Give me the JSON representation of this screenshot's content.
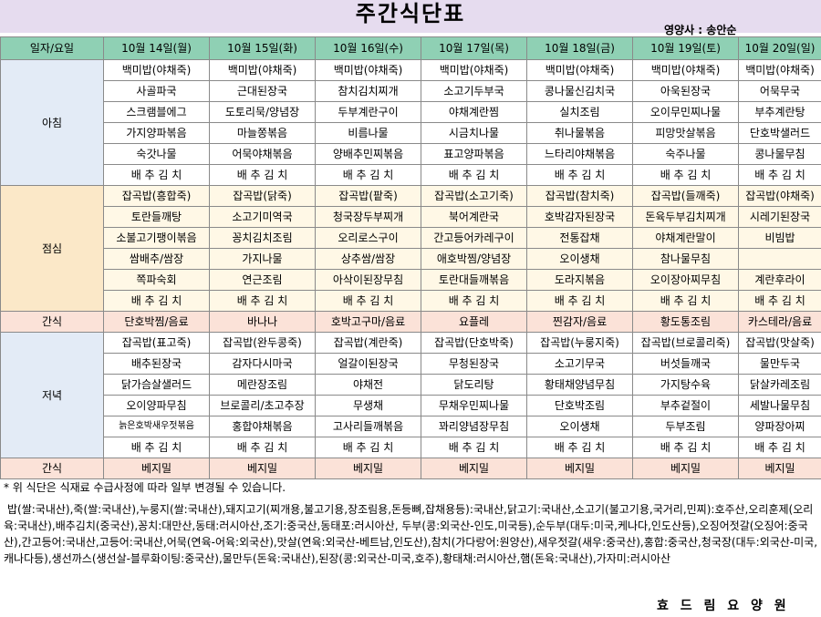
{
  "title": "주간식단표",
  "nutritionist": "영양사 : 송안순",
  "header": {
    "label": "일자/요일",
    "days": [
      "10월 14일(월)",
      "10월 15일(화)",
      "10월 16일(수)",
      "10월 17일(목)",
      "10월 18일(금)",
      "10월 19일(토)",
      "10월 20일(일)"
    ]
  },
  "breakfast": {
    "label": "아침",
    "rows": [
      [
        "백미밥(야채죽)",
        "백미밥(야채죽)",
        "백미밥(야채죽)",
        "백미밥(야채죽)",
        "백미밥(야채죽)",
        "백미밥(야채죽)",
        "백미밥(야채죽)"
      ],
      [
        "사골파국",
        "근대된장국",
        "참치김치찌개",
        "소고기두부국",
        "콩나물신김치국",
        "아욱된장국",
        "어묵무국"
      ],
      [
        "스크램블에그",
        "도토리묵/양념장",
        "두부계란구이",
        "야채계란찜",
        "실치조림",
        "오이무민찌나물",
        "부추계란탕"
      ],
      [
        "가지양파볶음",
        "마늘쫑볶음",
        "비름나물",
        "시금치나물",
        "취나물볶음",
        "피망맛살볶음",
        "단호박샐러드"
      ],
      [
        "숙갓나물",
        "어묵야채볶음",
        "양배추민찌볶음",
        "표고양파볶음",
        "느타리야채볶음",
        "숙주나물",
        "콩나물무침"
      ],
      [
        "배 추 김 치",
        "배 추 김 치",
        "배 추 김 치",
        "배 추 김 치",
        "배 추 김 치",
        "배 추 김 치",
        "배 추 김 치"
      ]
    ]
  },
  "lunch": {
    "label": "점심",
    "rows": [
      [
        "잡곡밥(흥합죽)",
        "잡곡밥(닭죽)",
        "잡곡밥(팥죽)",
        "잡곡밥(소고기죽)",
        "잡곡밥(참치죽)",
        "잡곡밥(들깨죽)",
        "잡곡밥(야채죽)"
      ],
      [
        "토란들깨탕",
        "소고기미역국",
        "청국장두부찌개",
        "북어계란국",
        "호박감자된장국",
        "돈육두부김치찌개",
        "시레기된장국"
      ],
      [
        "소불고기팽이볶음",
        "꽁치김치조림",
        "오리로스구이",
        "간고등어카레구이",
        "전통잡채",
        "야채계란말이",
        "비빔밥"
      ],
      [
        "쌈배추/쌈장",
        "가지나물",
        "상추쌈/쌈장",
        "애호박찜/양념장",
        "오이생채",
        "참나물무침",
        ""
      ],
      [
        "쪽파숙회",
        "연근조림",
        "아삭이된장무침",
        "토란대들깨볶음",
        "도라지볶음",
        "오이장아찌무침",
        "계란후라이"
      ],
      [
        "배 추 김 치",
        "배 추 김 치",
        "배 추 김 치",
        "배 추 김 치",
        "배 추 김 치",
        "배 추 김 치",
        "배 추 김 치"
      ]
    ]
  },
  "snack1": {
    "label": "간식",
    "items": [
      "단호박찜/음료",
      "바나나",
      "호박고구마/음료",
      "요플레",
      "찐감자/음료",
      "황도통조림",
      "카스테라/음료"
    ]
  },
  "dinner": {
    "label": "저녁",
    "rows": [
      [
        "잡곡밥(표고죽)",
        "잡곡밥(완두콩죽)",
        "잡곡밥(계란죽)",
        "잡곡밥(단호박죽)",
        "잡곡밥(누룽지죽)",
        "잡곡밥(브로콜리죽)",
        "잡곡밥(맛살죽)"
      ],
      [
        "배추된장국",
        "감자다시마국",
        "얼갈이된장국",
        "무청된장국",
        "소고기무국",
        "버섯들깨국",
        "물만두국"
      ],
      [
        "닭가슴살샐러드",
        "메란장조림",
        "야채전",
        "닭도리탕",
        "황태채양념무침",
        "가지탕수육",
        "닭살카레조림"
      ],
      [
        "오이양파무침",
        "브로콜리/초고추장",
        "무생채",
        "무채우민찌나물",
        "단호박조림",
        "부추겉절이",
        "세발나물무침"
      ],
      [
        "늙은호박새우젓볶음",
        "홍합야채볶음",
        "고사리들깨볶음",
        "꽈리양념장무침",
        "오이생채",
        "두부조림",
        "양파장아찌"
      ],
      [
        "배 추 김 치",
        "배 추 김 치",
        "배 추 김 치",
        "배 추 김 치",
        "배 추 김 치",
        "배 추 김 치",
        "배 추 김 치"
      ]
    ]
  },
  "snack2": {
    "label": "간식",
    "items": [
      "베지밀",
      "베지밀",
      "베지밀",
      "베지밀",
      "베지밀",
      "베지밀",
      "베지밀"
    ]
  },
  "notes": {
    "line1": "* 위 식단은 식재료 수급사정에 따라 일부 변경될 수 있습니다.",
    "line2": "밥(쌀:국내산),죽(쌀:국내산),누룽지(쌀:국내산),돼지고기(찌개용,불고기용,장조림용,돈등뼈,잡채용등):국내산,닭고기:국내산,소고기(불고기용,국거리,민찌):호주산,오리훈제(오리육:국내산),배추김치(중국산),꽁치:대만산,동태:러시아산,조기:중국산,동태포:러시아산, 두부(콩:외국산-인도,미국등),순두부(대두:미국,케나다,인도산등),오징어젓갈(오징어:중국산),간고등어:국내산,고등어:국내산,어묵(연육-어육:외국산),맛살(연육:외국산-베트남,인도산),참치(가다랑어:원양산),새우젓갈(새우:중국산),홍합:중국산,청국장(대두:외국산-미국,캐나다등),생선까스(생선살-블루화이팅:중국산),물만두(돈육:국내산),된장(콩:외국산-미국,호주),황태채:러시아산,햄(돈육:국내산),가자미:러시아산"
  },
  "footer": "효 드 림 요 양 원"
}
